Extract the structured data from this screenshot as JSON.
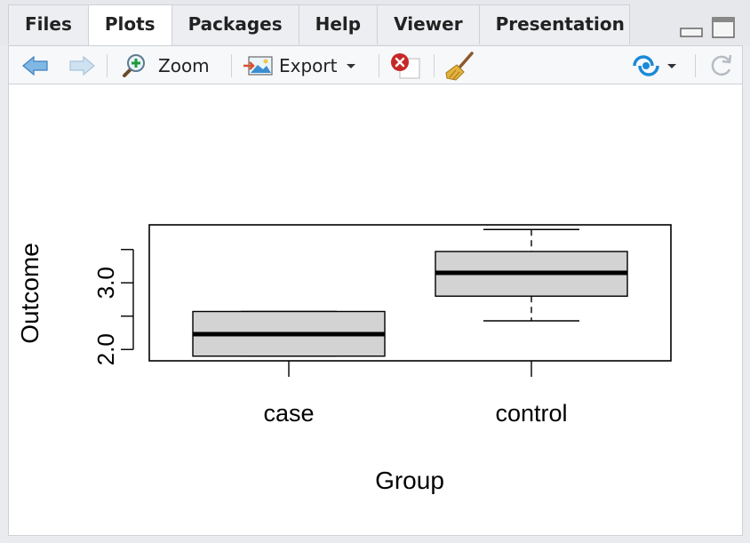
{
  "tabs": [
    {
      "label": "Files",
      "active": false
    },
    {
      "label": "Plots",
      "active": true
    },
    {
      "label": "Packages",
      "active": false
    },
    {
      "label": "Help",
      "active": false
    },
    {
      "label": "Viewer",
      "active": false
    },
    {
      "label": "Presentation",
      "active": false
    }
  ],
  "toolbar": {
    "zoom_label": "Zoom",
    "export_label": "Export"
  },
  "icons": {
    "back": "arrow-left-icon",
    "forward": "arrow-right-icon",
    "zoom": "magnifier-plus-icon",
    "export": "export-image-icon",
    "remove": "remove-plot-icon",
    "clear": "broom-icon",
    "publish": "publish-icon",
    "refresh": "refresh-icon"
  },
  "colors": {
    "accent": "#1a8ad8",
    "remove_red": "#c62828",
    "box_fill": "#d3d3d3"
  },
  "chart_data": {
    "type": "boxplot",
    "categories": [
      "case",
      "control"
    ],
    "boxes": [
      {
        "name": "case",
        "min": 1.9,
        "q1": 1.9,
        "median": 2.23,
        "q3": 2.57,
        "max": 2.57
      },
      {
        "name": "control",
        "min": 2.43,
        "q1": 2.8,
        "median": 3.15,
        "q3": 3.47,
        "max": 3.8
      }
    ],
    "xlabel": "Group",
    "ylabel": "Outcome",
    "yticks": [
      2.0,
      2.5,
      3.0,
      3.5
    ],
    "ytick_labels": [
      "2.0",
      "",
      "3.0",
      ""
    ],
    "ylim": [
      1.83,
      3.87
    ]
  }
}
